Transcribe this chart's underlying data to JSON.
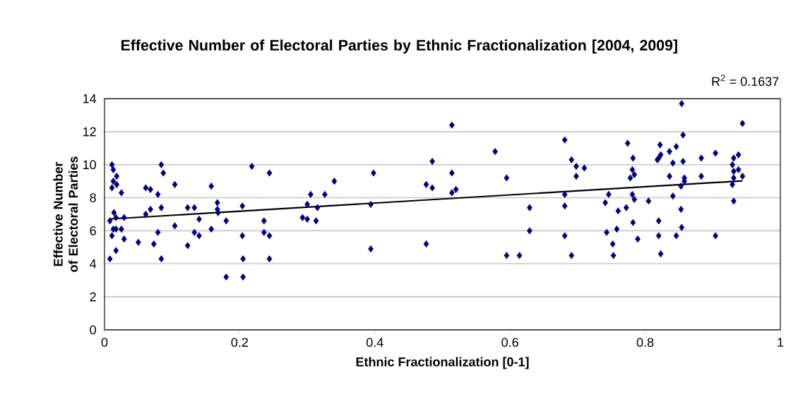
{
  "chart_data": {
    "type": "scatter",
    "title": "Effective Number of Electoral Parties by Ethnic Fractionalization [2004, 2009]",
    "xlabel": "Ethnic Fractionalization [0-1]",
    "ylabel": "Effective Number of Electoral Parties",
    "annotations": [
      "R$^{2}$ = 0.1637"
    ],
    "xlim": [
      0,
      1
    ],
    "xticks": [
      0,
      0.2,
      0.4,
      0.6,
      0.8,
      1
    ],
    "ylim": [
      0,
      14
    ],
    "yticks": [
      0,
      2,
      4,
      6,
      8,
      10,
      12,
      14
    ],
    "grid": "y",
    "marker": "diamond",
    "series": [
      {
        "color": "#000080",
        "x": [
          0.011,
          0.013,
          0.018,
          0.013,
          0.018,
          0.011,
          0.025,
          0.084,
          0.087,
          0.061,
          0.068,
          0.079,
          0.104,
          0.158,
          0.218,
          0.014,
          0.008,
          0.017,
          0.029,
          0.061,
          0.068,
          0.084,
          0.123,
          0.133,
          0.14,
          0.104,
          0.167,
          0.167,
          0.168,
          0.18,
          0.204,
          0.236,
          0.013,
          0.011,
          0.017,
          0.025,
          0.029,
          0.05,
          0.073,
          0.079,
          0.123,
          0.133,
          0.14,
          0.158,
          0.204,
          0.236,
          0.008,
          0.017,
          0.084,
          0.205,
          0.18,
          0.205,
          0.244,
          0.244,
          0.244,
          0.293,
          0.3,
          0.3,
          0.305,
          0.315,
          0.313,
          0.326,
          0.34,
          0.394,
          0.394,
          0.398,
          0.476,
          0.476,
          0.485,
          0.485,
          0.514,
          0.514,
          0.514,
          0.52,
          0.578,
          0.595,
          0.595,
          0.614,
          0.629,
          0.629,
          0.681,
          0.681,
          0.681,
          0.681,
          0.691,
          0.698,
          0.698,
          0.71,
          0.691,
          0.774,
          0.782,
          0.781,
          0.778,
          0.784,
          0.746,
          0.741,
          0.781,
          0.784,
          0.805,
          0.76,
          0.772,
          0.782,
          0.743,
          0.758,
          0.752,
          0.753,
          0.789,
          0.822,
          0.836,
          0.846,
          0.823,
          0.82,
          0.818,
          0.841,
          0.836,
          0.854,
          0.856,
          0.856,
          0.858,
          0.858,
          0.853,
          0.841,
          0.853,
          0.82,
          0.82,
          0.823,
          0.846,
          0.854,
          0.883,
          0.883,
          0.904,
          0.904,
          0.931,
          0.938,
          0.929,
          0.931,
          0.938,
          0.931,
          0.929,
          0.931,
          0.944,
          0.944
        ],
        "values": [
          10.0,
          9.7,
          9.3,
          9.0,
          8.8,
          8.6,
          8.3,
          10.0,
          9.5,
          8.6,
          8.5,
          8.2,
          8.8,
          8.7,
          9.9,
          7.1,
          6.6,
          6.8,
          6.8,
          7.0,
          7.3,
          7.4,
          7.4,
          7.4,
          6.7,
          6.3,
          7.7,
          7.3,
          7.1,
          6.6,
          7.5,
          6.6,
          6.1,
          5.7,
          6.1,
          6.1,
          5.5,
          5.3,
          5.2,
          5.9,
          5.1,
          5.9,
          5.7,
          6.1,
          5.7,
          5.9,
          4.3,
          4.8,
          4.3,
          4.3,
          3.2,
          3.2,
          5.7,
          9.5,
          4.3,
          6.8,
          6.7,
          7.6,
          8.2,
          7.4,
          6.6,
          8.2,
          9.0,
          7.6,
          4.9,
          9.5,
          8.8,
          5.2,
          10.2,
          8.6,
          12.4,
          9.5,
          8.3,
          8.5,
          10.8,
          9.2,
          4.5,
          4.5,
          7.4,
          6.0,
          11.5,
          8.2,
          7.5,
          5.7,
          10.3,
          9.9,
          9.3,
          9.8,
          4.5,
          11.3,
          10.4,
          9.7,
          9.2,
          9.4,
          8.2,
          7.7,
          8.2,
          7.9,
          7.8,
          7.2,
          7.4,
          6.5,
          5.9,
          6.1,
          5.2,
          4.5,
          5.5,
          11.2,
          10.8,
          11.1,
          10.6,
          10.4,
          10.3,
          10.1,
          9.3,
          13.7,
          11.8,
          10.2,
          9.2,
          9.0,
          8.7,
          8.1,
          7.3,
          6.6,
          5.7,
          4.6,
          5.7,
          6.2,
          10.4,
          9.3,
          10.7,
          5.7,
          10.4,
          10.6,
          10.0,
          9.6,
          9.7,
          9.2,
          8.8,
          7.8,
          12.5,
          9.3
        ]
      },
      {
        "type": "line",
        "marker": "none",
        "color": "#000000",
        "x": [
          0.008,
          0.944
        ],
        "values": [
          6.71,
          9.02
        ]
      }
    ]
  }
}
